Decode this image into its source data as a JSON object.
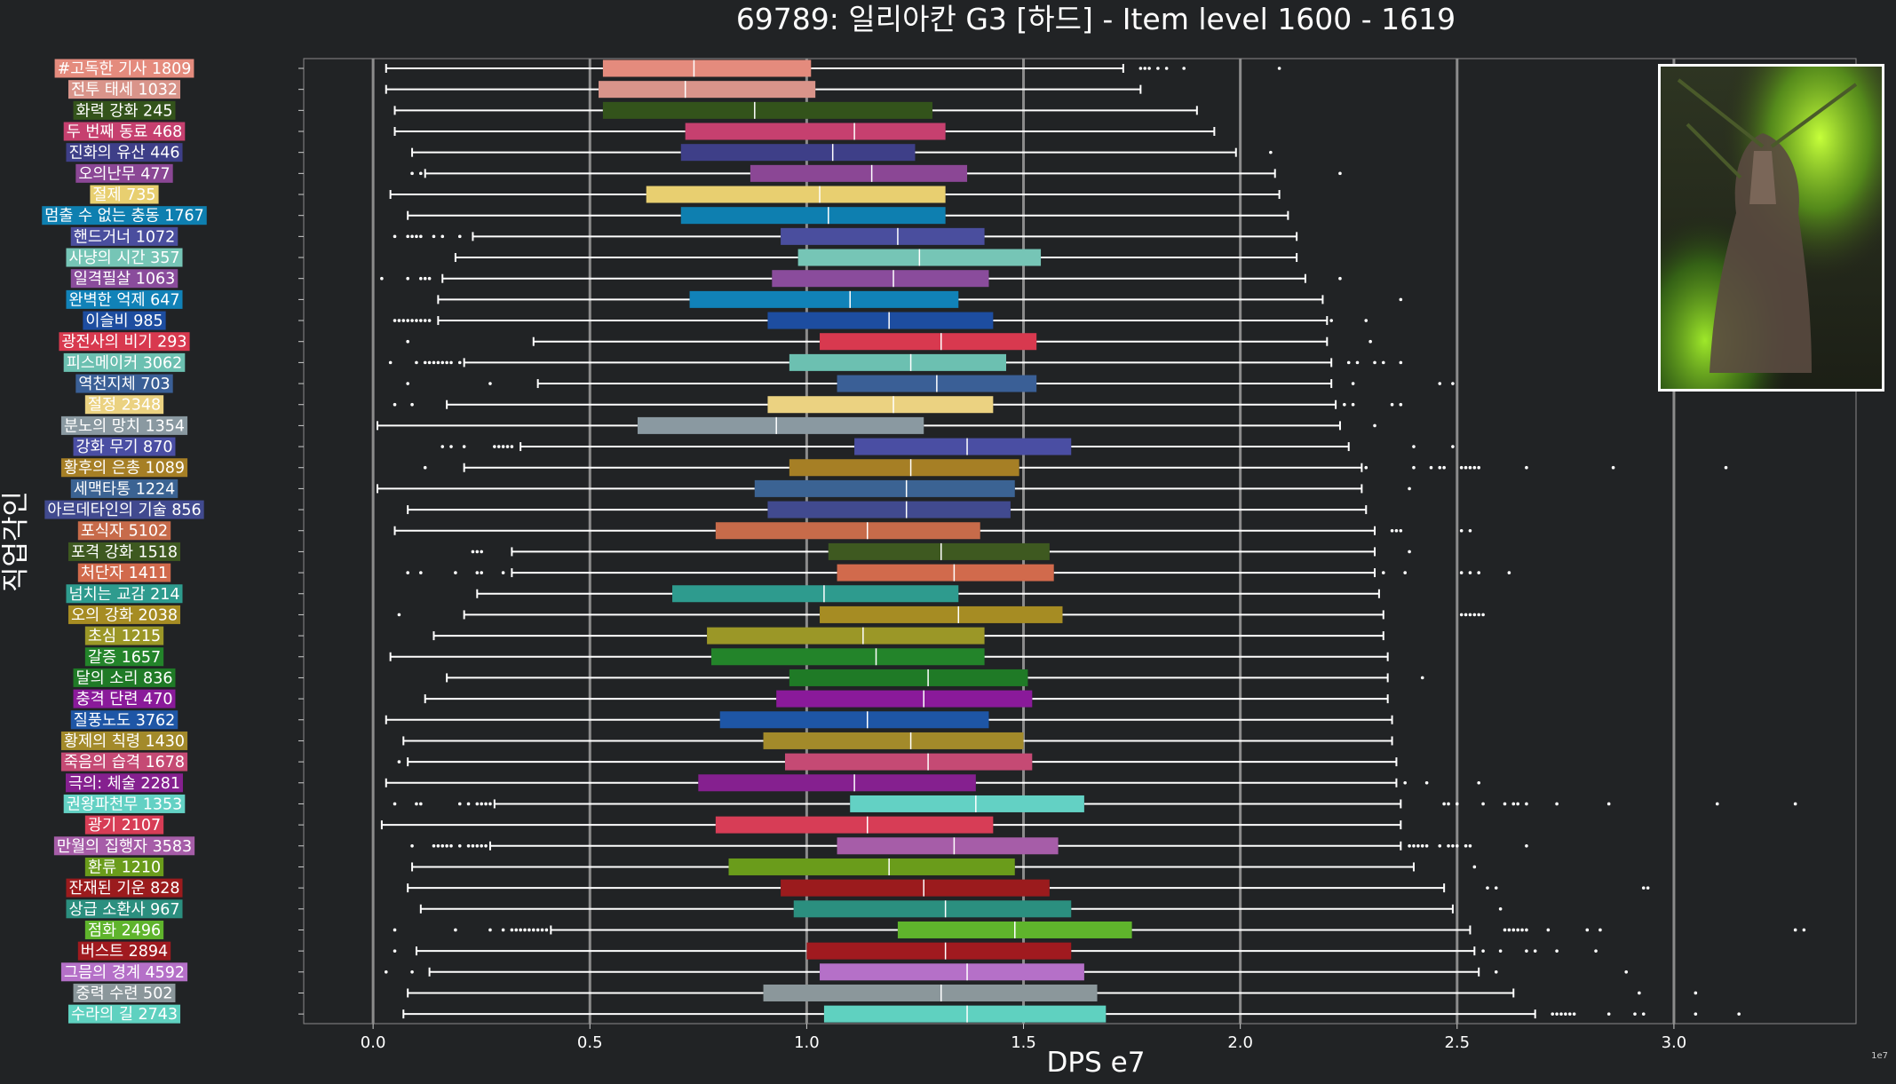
{
  "chart_data": {
    "type": "box",
    "orientation": "horizontal",
    "title": "69789: 일리아칸 G3 [하드] - Item level 1600 - 1619",
    "xlabel": "DPS e7",
    "ylabel": "직업각인",
    "x_offset_label": "1e7",
    "xlim": [
      -0.16,
      3.42
    ],
    "xticks": [
      0.0,
      0.5,
      1.0,
      1.5,
      2.0,
      2.5,
      3.0
    ],
    "xtick_labels": [
      "0.0",
      "0.5",
      "1.0",
      "1.5",
      "2.0",
      "2.5",
      "3.0"
    ],
    "grid": "vertical",
    "thumbnail": "boss-portrait (일리아칸)",
    "series": [
      {
        "label": "#고독한 기사 1809",
        "color": "#e48b7d",
        "whislo": 0.03,
        "q1": 0.53,
        "median": 0.74,
        "q3": 1.01,
        "whishi": 1.73,
        "fliers": [
          1.77,
          1.78,
          1.79,
          1.81,
          1.83,
          1.87,
          2.09
        ]
      },
      {
        "label": "전투 태세 1032",
        "color": "#d9948a",
        "whislo": 0.03,
        "q1": 0.52,
        "median": 0.72,
        "q3": 1.02,
        "whishi": 1.77,
        "fliers": []
      },
      {
        "label": "화력 강화 245",
        "color": "#33531b",
        "whislo": 0.05,
        "q1": 0.53,
        "median": 0.88,
        "q3": 1.29,
        "whishi": 1.9,
        "fliers": []
      },
      {
        "label": "두 번째 동료 468",
        "color": "#c6406f",
        "whislo": 0.05,
        "q1": 0.72,
        "median": 1.11,
        "q3": 1.32,
        "whishi": 1.94,
        "fliers": []
      },
      {
        "label": "진화의 유산 446",
        "color": "#3e3f88",
        "whislo": 0.09,
        "q1": 0.71,
        "median": 1.06,
        "q3": 1.25,
        "whishi": 1.99,
        "fliers": [
          2.07
        ]
      },
      {
        "label": "오의난무 477",
        "color": "#8b4795",
        "whislo": 0.12,
        "q1": 0.87,
        "median": 1.15,
        "q3": 1.37,
        "whishi": 2.08,
        "fliers": [
          0.09,
          0.11,
          2.23
        ]
      },
      {
        "label": "절제 735",
        "color": "#e8cf70",
        "whislo": 0.04,
        "q1": 0.63,
        "median": 1.03,
        "q3": 1.32,
        "whishi": 2.09,
        "fliers": []
      },
      {
        "label": "멈출 수 없는 충동 1767",
        "color": "#0e7fb0",
        "whislo": 0.08,
        "q1": 0.71,
        "median": 1.05,
        "q3": 1.32,
        "whishi": 2.11,
        "fliers": []
      },
      {
        "label": "핸드거너 1072",
        "color": "#4a4e9e",
        "whislo": 0.23,
        "q1": 0.94,
        "median": 1.21,
        "q3": 1.41,
        "whishi": 2.13,
        "fliers": [
          0.05,
          0.08,
          0.09,
          0.1,
          0.11,
          0.14,
          0.16,
          0.2
        ]
      },
      {
        "label": "사냥의 시간 357",
        "color": "#76c5b6",
        "whislo": 0.19,
        "q1": 0.98,
        "median": 1.26,
        "q3": 1.54,
        "whishi": 2.13,
        "fliers": []
      },
      {
        "label": "일격필살 1063",
        "color": "#8a4c9c",
        "whislo": 0.16,
        "q1": 0.92,
        "median": 1.2,
        "q3": 1.42,
        "whishi": 2.15,
        "fliers": [
          0.02,
          0.08,
          0.11,
          0.12,
          0.13,
          2.23
        ]
      },
      {
        "label": "완벽한 억제 647",
        "color": "#1182b8",
        "whislo": 0.15,
        "q1": 0.73,
        "median": 1.1,
        "q3": 1.35,
        "whishi": 2.19,
        "fliers": [
          2.37
        ]
      },
      {
        "label": "이슬비 985",
        "color": "#1d4da0",
        "whislo": 0.15,
        "q1": 0.91,
        "median": 1.19,
        "q3": 1.43,
        "whishi": 2.2,
        "fliers": [
          0.05,
          0.06,
          0.07,
          0.08,
          0.09,
          0.1,
          0.11,
          0.12,
          0.13,
          2.21,
          2.29
        ]
      },
      {
        "label": "광전사의 비기 293",
        "color": "#d8394f",
        "whislo": 0.37,
        "q1": 1.03,
        "median": 1.31,
        "q3": 1.53,
        "whishi": 2.2,
        "fliers": [
          0.08,
          2.3
        ]
      },
      {
        "label": "피스메이커 3062",
        "color": "#6cc0b1",
        "whislo": 0.21,
        "q1": 0.96,
        "median": 1.24,
        "q3": 1.46,
        "whishi": 2.21,
        "fliers": [
          0.04,
          0.1,
          0.12,
          0.13,
          0.14,
          0.15,
          0.16,
          0.17,
          0.18,
          0.2,
          2.25,
          2.27,
          2.31,
          2.33,
          2.37
        ]
      },
      {
        "label": "역천지체 703",
        "color": "#3a5f96",
        "whislo": 0.38,
        "q1": 1.07,
        "median": 1.3,
        "q3": 1.53,
        "whishi": 2.21,
        "fliers": [
          0.08,
          0.27,
          2.26,
          2.46,
          2.49
        ]
      },
      {
        "label": "절정 2348",
        "color": "#ebd281",
        "whislo": 0.17,
        "q1": 0.91,
        "median": 1.2,
        "q3": 1.43,
        "whishi": 2.22,
        "fliers": [
          0.05,
          0.09,
          2.24,
          2.26,
          2.35,
          2.37
        ]
      },
      {
        "label": "분노의 망치 1354",
        "color": "#8a99a1",
        "whislo": 0.01,
        "q1": 0.61,
        "median": 0.93,
        "q3": 1.27,
        "whishi": 2.23,
        "fliers": [
          2.31
        ]
      },
      {
        "label": "강화 무기 870",
        "color": "#4a4ea3",
        "whislo": 0.34,
        "q1": 1.11,
        "median": 1.37,
        "q3": 1.61,
        "whishi": 2.25,
        "fliers": [
          0.16,
          0.18,
          0.21,
          0.28,
          0.29,
          0.3,
          0.31,
          0.32,
          2.4,
          2.49
        ]
      },
      {
        "label": "황후의 은총 1089",
        "color": "#a67f25",
        "whislo": 0.21,
        "q1": 0.96,
        "median": 1.24,
        "q3": 1.49,
        "whishi": 2.28,
        "fliers": [
          0.12,
          2.29,
          2.4,
          2.44,
          2.46,
          2.47,
          2.51,
          2.52,
          2.53,
          2.54,
          2.55,
          2.66,
          2.86,
          3.12
        ]
      },
      {
        "label": "세맥타통 1224",
        "color": "#3b6393",
        "whislo": 0.01,
        "q1": 0.88,
        "median": 1.23,
        "q3": 1.48,
        "whishi": 2.28,
        "fliers": [
          2.39
        ]
      },
      {
        "label": "아르데타인의 기술 856",
        "color": "#414a8f",
        "whislo": 0.08,
        "q1": 0.91,
        "median": 1.23,
        "q3": 1.47,
        "whishi": 2.29,
        "fliers": []
      },
      {
        "label": "포식자 5102",
        "color": "#c76b4a",
        "whislo": 0.05,
        "q1": 0.79,
        "median": 1.14,
        "q3": 1.4,
        "whishi": 2.31,
        "fliers": [
          2.35,
          2.36,
          2.37,
          2.51,
          2.53
        ]
      },
      {
        "label": "포격 강화 1518",
        "color": "#3e5920",
        "whislo": 0.32,
        "q1": 1.05,
        "median": 1.31,
        "q3": 1.56,
        "whishi": 2.31,
        "fliers": [
          0.23,
          0.24,
          0.25,
          2.39
        ]
      },
      {
        "label": "처단자 1411",
        "color": "#d16a4c",
        "whislo": 0.32,
        "q1": 1.07,
        "median": 1.34,
        "q3": 1.57,
        "whishi": 2.31,
        "fliers": [
          0.08,
          0.11,
          0.19,
          0.24,
          0.25,
          0.3,
          2.33,
          2.38,
          2.51,
          2.53,
          2.55,
          2.62
        ]
      },
      {
        "label": "넘치는 교감 214",
        "color": "#2e9b8e",
        "whislo": 0.24,
        "q1": 0.69,
        "median": 1.04,
        "q3": 1.35,
        "whishi": 2.32,
        "fliers": []
      },
      {
        "label": "오의 강화 2038",
        "color": "#a68c23",
        "whislo": 0.21,
        "q1": 1.03,
        "median": 1.35,
        "q3": 1.59,
        "whishi": 2.33,
        "fliers": [
          0.06,
          2.51,
          2.52,
          2.53,
          2.54,
          2.55,
          2.56
        ]
      },
      {
        "label": "초심 1215",
        "color": "#9b9727",
        "whislo": 0.14,
        "q1": 0.77,
        "median": 1.13,
        "q3": 1.41,
        "whishi": 2.33,
        "fliers": []
      },
      {
        "label": "갈증 1657",
        "color": "#23842a",
        "whislo": 0.04,
        "q1": 0.78,
        "median": 1.16,
        "q3": 1.41,
        "whishi": 2.34,
        "fliers": []
      },
      {
        "label": "달의 소리 836",
        "color": "#1f7a26",
        "whislo": 0.17,
        "q1": 0.96,
        "median": 1.28,
        "q3": 1.51,
        "whishi": 2.34,
        "fliers": [
          2.42
        ]
      },
      {
        "label": "충격 단련 470",
        "color": "#8a1a9a",
        "whislo": 0.12,
        "q1": 0.93,
        "median": 1.27,
        "q3": 1.52,
        "whishi": 2.34,
        "fliers": []
      },
      {
        "label": "질풍노도 3762",
        "color": "#1e56a6",
        "whislo": 0.03,
        "q1": 0.8,
        "median": 1.14,
        "q3": 1.42,
        "whishi": 2.35,
        "fliers": []
      },
      {
        "label": "황제의 칙령 1430",
        "color": "#a38a2a",
        "whislo": 0.07,
        "q1": 0.9,
        "median": 1.24,
        "q3": 1.5,
        "whishi": 2.35,
        "fliers": []
      },
      {
        "label": "죽음의 습격 1678",
        "color": "#c54a74",
        "whislo": 0.08,
        "q1": 0.95,
        "median": 1.28,
        "q3": 1.52,
        "whishi": 2.36,
        "fliers": [
          0.06
        ]
      },
      {
        "label": "극의: 체술 2281",
        "color": "#85208f",
        "whislo": 0.03,
        "q1": 0.75,
        "median": 1.11,
        "q3": 1.39,
        "whishi": 2.36,
        "fliers": [
          2.38,
          2.43,
          2.55
        ]
      },
      {
        "label": "권왕파천무 1353",
        "color": "#63d1c4",
        "whislo": 0.28,
        "q1": 1.1,
        "median": 1.39,
        "q3": 1.64,
        "whishi": 2.37,
        "fliers": [
          0.05,
          0.1,
          0.11,
          0.2,
          0.22,
          0.24,
          0.25,
          0.26,
          0.27,
          2.47,
          2.48,
          2.5,
          2.56,
          2.61,
          2.63,
          2.64,
          2.66,
          2.73,
          2.85,
          3.1,
          3.28
        ]
      },
      {
        "label": "광기 2107",
        "color": "#d73d56",
        "whislo": 0.02,
        "q1": 0.79,
        "median": 1.14,
        "q3": 1.43,
        "whishi": 2.37,
        "fliers": []
      },
      {
        "label": "만월의 집행자 3583",
        "color": "#a65da8",
        "whislo": 0.27,
        "q1": 1.07,
        "median": 1.34,
        "q3": 1.58,
        "whishi": 2.37,
        "fliers": [
          0.09,
          0.14,
          0.15,
          0.16,
          0.17,
          0.18,
          0.2,
          0.22,
          0.23,
          0.24,
          0.25,
          0.26,
          2.39,
          2.4,
          2.41,
          2.42,
          2.43,
          2.46,
          2.48,
          2.49,
          2.5,
          2.52,
          2.53,
          2.66
        ]
      },
      {
        "label": "환류 1210",
        "color": "#6a9c1b",
        "whislo": 0.09,
        "q1": 0.82,
        "median": 1.19,
        "q3": 1.48,
        "whishi": 2.4,
        "fliers": [
          2.54
        ]
      },
      {
        "label": "잔재된 기운 828",
        "color": "#9b1b1d",
        "whislo": 0.08,
        "q1": 0.94,
        "median": 1.27,
        "q3": 1.56,
        "whishi": 2.47,
        "fliers": [
          2.57,
          2.59,
          2.93,
          2.94
        ]
      },
      {
        "label": "상급 소환사 967",
        "color": "#2b8f7f",
        "whislo": 0.11,
        "q1": 0.97,
        "median": 1.32,
        "q3": 1.61,
        "whishi": 2.49,
        "fliers": [
          2.6
        ]
      },
      {
        "label": "점화 2496",
        "color": "#5fb42c",
        "whislo": 0.41,
        "q1": 1.21,
        "median": 1.48,
        "q3": 1.75,
        "whishi": 2.53,
        "fliers": [
          0.05,
          0.19,
          0.27,
          0.3,
          0.32,
          0.33,
          0.34,
          0.35,
          0.36,
          0.37,
          0.38,
          0.39,
          0.4,
          2.61,
          2.62,
          2.63,
          2.64,
          2.65,
          2.66,
          2.71,
          2.8,
          2.83,
          3.28,
          3.3
        ]
      },
      {
        "label": "버스트 2894",
        "color": "#a01a1f",
        "whislo": 0.1,
        "q1": 1.0,
        "median": 1.32,
        "q3": 1.61,
        "whishi": 2.54,
        "fliers": [
          0.05,
          2.56,
          2.6,
          2.66,
          2.68,
          2.73,
          2.82
        ]
      },
      {
        "label": "그믐의 경계 4592",
        "color": "#b570c8",
        "whislo": 0.13,
        "q1": 1.03,
        "median": 1.37,
        "q3": 1.64,
        "whishi": 2.55,
        "fliers": [
          0.03,
          0.09,
          2.59,
          2.89
        ]
      },
      {
        "label": "중력 수련 502",
        "color": "#8b979b",
        "whislo": 0.08,
        "q1": 0.9,
        "median": 1.31,
        "q3": 1.67,
        "whishi": 2.63,
        "fliers": [
          2.92,
          3.05
        ]
      },
      {
        "label": "수라의 길 2743",
        "color": "#5fd1c0",
        "whislo": 0.07,
        "q1": 1.04,
        "median": 1.37,
        "q3": 1.69,
        "whishi": 2.68,
        "fliers": [
          2.72,
          2.73,
          2.74,
          2.75,
          2.76,
          2.77,
          2.85,
          2.91,
          2.93,
          3.05,
          3.15
        ]
      }
    ]
  }
}
